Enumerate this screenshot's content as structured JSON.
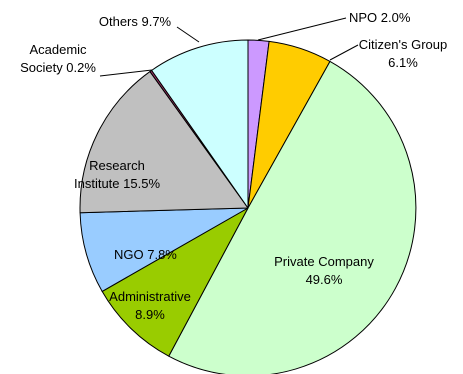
{
  "chart_data": {
    "type": "pie",
    "start_angle_deg": 0,
    "direction": "clockwise",
    "slices": [
      {
        "name": "NPO",
        "value": 2.0,
        "label": [
          "NPO 2.0%"
        ],
        "color": "#cc99ff"
      },
      {
        "name": "Citizen's Group",
        "value": 6.1,
        "label": [
          "Citizen's Group",
          "6.1%"
        ],
        "color": "#ffcc00"
      },
      {
        "name": "Private Company",
        "value": 49.6,
        "label": [
          "Private Company",
          "49.6%"
        ],
        "color": "#ccffcc"
      },
      {
        "name": "Administrative",
        "value": 8.9,
        "label": [
          "Administrative",
          "8.9%"
        ],
        "color": "#99cc00"
      },
      {
        "name": "NGO",
        "value": 7.8,
        "label": [
          "NGO 7.8%"
        ],
        "color": "#99ccff"
      },
      {
        "name": "Research Institute",
        "value": 15.5,
        "label": [
          "Research",
          "Institute 15.5%"
        ],
        "color": "#c0c0c0"
      },
      {
        "name": "Academic Society",
        "value": 0.2,
        "label": [
          "Academic",
          "Society 0.2%"
        ],
        "color": "#993366"
      },
      {
        "name": "Others",
        "value": 9.7,
        "label": [
          "Others 9.7%"
        ],
        "color": "#ccffff"
      }
    ]
  }
}
